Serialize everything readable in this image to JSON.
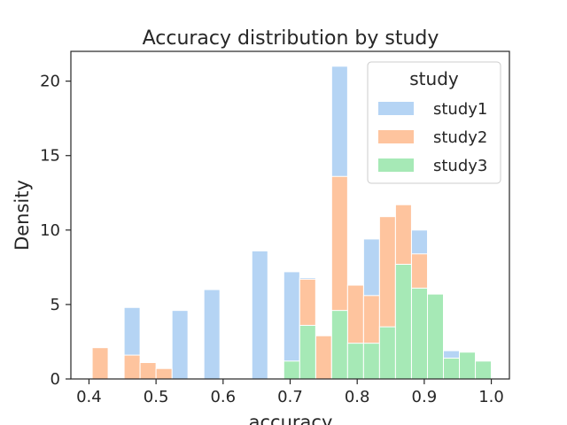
{
  "chart_data": {
    "type": "histogram",
    "title": "Accuracy distribution by study",
    "xlabel": "accuracy",
    "ylabel": "Density",
    "xlim": [
      0.373,
      1.027
    ],
    "ylim": [
      0,
      22
    ],
    "xticks": [
      "0.4",
      "0.5",
      "0.6",
      "0.7",
      "0.8",
      "0.9",
      "1.0"
    ],
    "yticks": [
      "0",
      "5",
      "10",
      "15",
      "20"
    ],
    "stacked": true,
    "bin_width": 0.0238,
    "legend": {
      "title": "study",
      "position": "top-right"
    },
    "series": [
      {
        "name": "study1",
        "color": "#b5d4f4",
        "bins": [
          {
            "x0": 0.4524,
            "top": 4.8
          },
          {
            "x0": 0.5238,
            "top": 4.6
          },
          {
            "x0": 0.5714,
            "top": 6.0
          },
          {
            "x0": 0.6429,
            "top": 8.6
          },
          {
            "x0": 0.6905,
            "top": 7.2
          },
          {
            "x0": 0.7143,
            "top": 6.8
          },
          {
            "x0": 0.7619,
            "top": 21.0
          },
          {
            "x0": 0.8095,
            "top": 9.4
          },
          {
            "x0": 0.881,
            "top": 10.0
          },
          {
            "x0": 0.9286,
            "top": 1.9
          }
        ]
      },
      {
        "name": "study2",
        "color": "#fec49e",
        "bins": [
          {
            "x0": 0.4048,
            "top": 2.1
          },
          {
            "x0": 0.4524,
            "top": 1.6
          },
          {
            "x0": 0.4762,
            "top": 1.1
          },
          {
            "x0": 0.5,
            "top": 0.7
          },
          {
            "x0": 0.7143,
            "top": 6.7
          },
          {
            "x0": 0.7381,
            "top": 2.9
          },
          {
            "x0": 0.7619,
            "top": 13.6
          },
          {
            "x0": 0.7857,
            "top": 6.3
          },
          {
            "x0": 0.8095,
            "top": 5.6
          },
          {
            "x0": 0.8333,
            "top": 10.9
          },
          {
            "x0": 0.8571,
            "top": 11.7
          },
          {
            "x0": 0.881,
            "top": 8.4
          }
        ]
      },
      {
        "name": "study3",
        "color": "#a6e9b6",
        "bins": [
          {
            "x0": 0.6905,
            "top": 1.2
          },
          {
            "x0": 0.7143,
            "top": 3.6
          },
          {
            "x0": 0.7619,
            "top": 4.6
          },
          {
            "x0": 0.7857,
            "top": 2.4
          },
          {
            "x0": 0.8095,
            "top": 2.4
          },
          {
            "x0": 0.8333,
            "top": 3.5
          },
          {
            "x0": 0.8571,
            "top": 7.7
          },
          {
            "x0": 0.881,
            "top": 6.1
          },
          {
            "x0": 0.9048,
            "top": 5.7
          },
          {
            "x0": 0.9286,
            "top": 1.4
          },
          {
            "x0": 0.9524,
            "top": 1.8
          },
          {
            "x0": 0.9762,
            "top": 1.2
          }
        ]
      }
    ]
  }
}
